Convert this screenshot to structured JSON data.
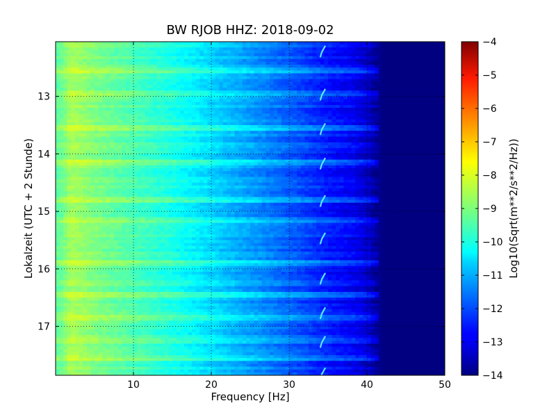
{
  "chart_data": {
    "type": "heatmap",
    "title": "BW RJOB HHZ: 2018-09-02",
    "xlabel": "Frequency [Hz]",
    "ylabel": "Lokalzeit (UTC + 2 Stunde)",
    "xlim": [
      0,
      50
    ],
    "ylim": [
      12.05,
      17.85
    ],
    "y_axis_inverted": true,
    "x_ticks": [
      10,
      20,
      30,
      40,
      50
    ],
    "y_ticks": [
      13,
      14,
      15,
      16,
      17
    ],
    "grid": true,
    "colormap": "jet",
    "colorbar": {
      "label": "Log10(Sqrt(m**2/s**2/Hz))",
      "range": [
        -14,
        -4
      ],
      "ticks": [
        -4,
        -5,
        -6,
        -7,
        -8,
        -9,
        -10,
        -11,
        -12,
        -13,
        -14
      ]
    },
    "approx_level_by_frequency": {
      "frequency_hz": [
        0.5,
        2,
        5,
        10,
        15,
        20,
        25,
        30,
        35,
        38,
        40,
        42,
        45,
        50
      ],
      "log10_value": [
        -9.3,
        -8.6,
        -9.0,
        -9.5,
        -10.0,
        -10.6,
        -11.2,
        -11.8,
        -12.5,
        -12.8,
        -13.2,
        -14,
        -14,
        -14
      ]
    },
    "features": [
      {
        "description": "recurring narrow-band hook-shaped signal near 34-35 Hz",
        "frequency_hz": 34.3,
        "times_hours": [
          12.2,
          12.95,
          13.55,
          14.15,
          14.8,
          15.45,
          16.15,
          16.75,
          17.25,
          17.8
        ]
      },
      {
        "description": "broadband horizontal stripes",
        "times_hours": [
          12.55,
          12.95,
          13.55,
          14.15,
          14.8,
          15.15,
          15.9,
          16.45,
          16.85,
          17.25,
          17.55
        ]
      }
    ]
  }
}
